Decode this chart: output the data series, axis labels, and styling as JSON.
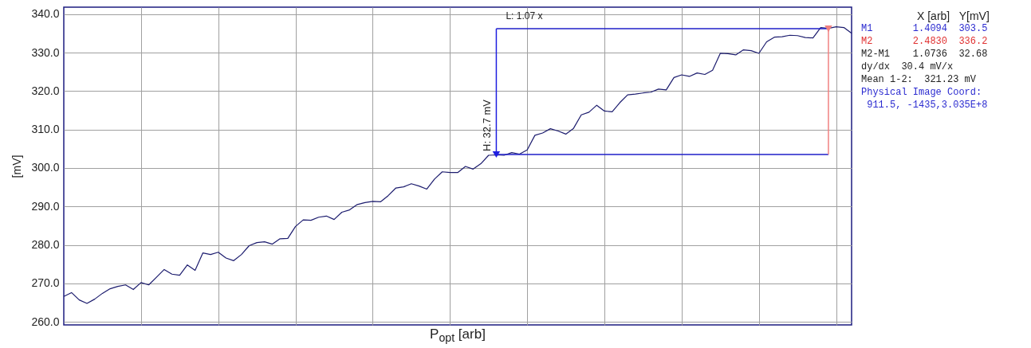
{
  "chart_data": {
    "type": "line",
    "xlabel": "P$_{opt}$ [arb]",
    "ylabel": "[mV]",
    "categories": [
      null,
      null,
      null,
      null,
      null,
      null,
      null,
      null,
      null,
      null,
      null,
      null,
      null,
      null,
      null,
      null,
      null,
      null,
      null,
      null,
      null,
      null,
      null,
      null,
      null,
      null,
      null,
      null,
      null,
      null,
      null,
      null,
      null,
      null,
      null,
      null,
      null,
      null,
      null,
      null,
      null,
      null,
      null,
      null,
      null,
      null,
      null,
      null,
      null,
      null,
      null,
      null,
      null,
      null,
      null,
      null,
      null,
      null,
      null,
      null,
      null,
      null,
      null,
      null,
      null,
      null,
      null,
      null,
      null,
      null,
      null,
      null,
      null,
      null,
      null,
      null,
      null,
      null,
      null,
      null,
      null,
      null,
      null,
      null,
      null,
      null,
      null,
      null,
      null,
      null,
      null,
      null,
      null,
      null,
      null,
      null,
      null,
      null,
      null,
      null,
      null,
      null,
      null
    ],
    "ylim": [
      259.2,
      341.8
    ],
    "yticks": [
      {
        "value": 260,
        "label": "260.0"
      },
      {
        "value": 270,
        "label": "270.0"
      },
      {
        "value": 280,
        "label": "280.0"
      },
      {
        "value": 290,
        "label": "290.0"
      },
      {
        "value": 300,
        "label": "300.0"
      },
      {
        "value": 310,
        "label": "310.0"
      },
      {
        "value": 320,
        "label": "320.0"
      },
      {
        "value": 330,
        "label": "330.0"
      },
      {
        "value": 340,
        "label": "340.0"
      }
    ],
    "grid": true,
    "tick_labels": "y",
    "series": [
      {
        "color": "#1c1c6e",
        "values": [
          266.6,
          267.6,
          265.7,
          264.8,
          265.9,
          267.4,
          268.6,
          269.2,
          269.6,
          268.4,
          270.2,
          269.6,
          271.6,
          273.6,
          272.4,
          272.1,
          274.8,
          273.4,
          277.9,
          277.5,
          278.1,
          276.6,
          275.9,
          277.5,
          279.8,
          280.6,
          280.8,
          280.2,
          281.6,
          281.7,
          284.8,
          286.5,
          286.4,
          287.2,
          287.5,
          286.6,
          288.5,
          289.1,
          290.5,
          291.0,
          291.3,
          291.2,
          292.8,
          294.8,
          295.1,
          295.9,
          295.3,
          294.5,
          297.1,
          299.0,
          298.8,
          298.8,
          300.4,
          299.7,
          301.1,
          303.3,
          303.4,
          303.3,
          304.0,
          303.6,
          304.7,
          308.5,
          309.1,
          310.2,
          309.6,
          308.8,
          310.3,
          313.8,
          314.5,
          316.3,
          314.8,
          314.6,
          317.0,
          319.0,
          319.2,
          319.5,
          319.7,
          320.5,
          320.3,
          323.5,
          324.2,
          323.8,
          324.7,
          324.3,
          325.4,
          329.8,
          329.7,
          329.4,
          330.7,
          330.5,
          329.8,
          332.8,
          334.0,
          334.1,
          334.5,
          334.4,
          333.9,
          333.8,
          336.5,
          336.3,
          336.7,
          336.5,
          335.0
        ]
      },
      {
        "type": "line",
        "color": "#1f1fc8",
        "values": [
          null,
          null,
          null,
          null,
          null,
          null,
          null,
          null,
          null,
          null,
          null,
          null,
          null,
          null,
          null,
          null,
          null,
          null,
          null,
          null,
          null,
          null,
          null,
          null,
          null,
          null,
          null,
          null,
          null,
          null,
          null,
          null,
          null,
          null,
          null,
          null,
          null,
          null,
          null,
          null,
          null,
          null,
          null,
          null,
          null,
          null,
          null,
          null,
          null,
          null,
          null,
          null,
          null,
          null,
          null,
          null,
          336.2,
          336.2,
          336.2,
          336.2,
          336.2,
          336.2,
          336.2,
          336.2,
          336.2,
          336.2,
          336.2,
          336.2,
          336.2,
          336.2,
          336.2,
          336.2,
          336.2,
          336.2,
          336.2,
          336.2,
          336.2,
          336.2,
          336.2,
          336.2,
          336.2,
          336.2,
          336.2,
          336.2,
          336.2,
          336.2,
          336.2,
          336.2,
          336.2,
          336.2,
          336.2,
          336.2,
          336.2,
          336.2,
          336.2,
          336.2,
          336.2,
          336.2,
          336.2,
          336.2,
          null,
          null,
          null
        ]
      },
      {
        "type": "line",
        "color": "#1f1fc8",
        "values": [
          null,
          null,
          null,
          null,
          null,
          null,
          null,
          null,
          null,
          null,
          null,
          null,
          null,
          null,
          null,
          null,
          null,
          null,
          null,
          null,
          null,
          null,
          null,
          null,
          null,
          null,
          null,
          null,
          null,
          null,
          null,
          null,
          null,
          null,
          null,
          null,
          null,
          null,
          null,
          null,
          null,
          null,
          null,
          null,
          null,
          null,
          null,
          null,
          null,
          null,
          null,
          null,
          null,
          null,
          null,
          null,
          303.5,
          303.5,
          303.5,
          303.5,
          303.5,
          303.5,
          303.5,
          303.5,
          303.5,
          303.5,
          303.5,
          303.5,
          303.5,
          303.5,
          303.5,
          303.5,
          303.5,
          303.5,
          303.5,
          303.5,
          303.5,
          303.5,
          303.5,
          303.5,
          303.5,
          303.5,
          303.5,
          303.5,
          303.5,
          303.5,
          303.5,
          303.5,
          303.5,
          303.5,
          303.5,
          303.5,
          303.5,
          303.5,
          303.5,
          303.5,
          303.5,
          303.5,
          303.5,
          303.5,
          null,
          null,
          null
        ]
      },
      {
        "type": "scatter",
        "color": "#1f1fe0",
        "marker": "triangle",
        "values": [
          null,
          null,
          null,
          null,
          null,
          null,
          null,
          null,
          null,
          null,
          null,
          null,
          null,
          null,
          null,
          null,
          null,
          null,
          null,
          null,
          null,
          null,
          null,
          null,
          null,
          null,
          null,
          null,
          null,
          null,
          null,
          null,
          null,
          null,
          null,
          null,
          null,
          null,
          null,
          null,
          null,
          null,
          null,
          null,
          null,
          null,
          null,
          null,
          null,
          null,
          null,
          null,
          null,
          null,
          null,
          null,
          303.5,
          null,
          null,
          null,
          null,
          null,
          null,
          null,
          null,
          null,
          null,
          null,
          null,
          null,
          null,
          null,
          null,
          null,
          null,
          null,
          null,
          null,
          null,
          null,
          null,
          null,
          null,
          null,
          null,
          null,
          null,
          null,
          null,
          null,
          null,
          null,
          null,
          null,
          null,
          null,
          null,
          null,
          null,
          null,
          null,
          null,
          null
        ],
        "errors": [
          null,
          null,
          null,
          null,
          null,
          null,
          null,
          null,
          null,
          null,
          null,
          null,
          null,
          null,
          null,
          null,
          null,
          null,
          null,
          null,
          null,
          null,
          null,
          null,
          null,
          null,
          null,
          null,
          null,
          null,
          null,
          null,
          null,
          null,
          null,
          null,
          null,
          null,
          null,
          null,
          null,
          null,
          null,
          null,
          null,
          null,
          null,
          null,
          null,
          null,
          null,
          null,
          null,
          null,
          null,
          null,
          [
            303.5,
            336.2
          ],
          null,
          null,
          null,
          null,
          null,
          null,
          null,
          null,
          null,
          null,
          null,
          null,
          null,
          null,
          null,
          null,
          null,
          null,
          null,
          null,
          null,
          null,
          null,
          null,
          null,
          null,
          null,
          null,
          null,
          null,
          null,
          null,
          null,
          null,
          null,
          null,
          null,
          null,
          null,
          null,
          null,
          null,
          null,
          null,
          null,
          null
        ]
      },
      {
        "type": "scatter",
        "color": "#f08080",
        "marker": "triangle",
        "values": [
          null,
          null,
          null,
          null,
          null,
          null,
          null,
          null,
          null,
          null,
          null,
          null,
          null,
          null,
          null,
          null,
          null,
          null,
          null,
          null,
          null,
          null,
          null,
          null,
          null,
          null,
          null,
          null,
          null,
          null,
          null,
          null,
          null,
          null,
          null,
          null,
          null,
          null,
          null,
          null,
          null,
          null,
          null,
          null,
          null,
          null,
          null,
          null,
          null,
          null,
          null,
          null,
          null,
          null,
          null,
          null,
          null,
          null,
          null,
          null,
          null,
          null,
          null,
          null,
          null,
          null,
          null,
          null,
          null,
          null,
          null,
          null,
          null,
          null,
          null,
          null,
          null,
          null,
          null,
          null,
          null,
          null,
          null,
          null,
          null,
          null,
          null,
          null,
          null,
          null,
          null,
          null,
          null,
          null,
          null,
          null,
          null,
          null,
          null,
          336.2,
          null,
          null,
          null
        ],
        "errors": [
          null,
          null,
          null,
          null,
          null,
          null,
          null,
          null,
          null,
          null,
          null,
          null,
          null,
          null,
          null,
          null,
          null,
          null,
          null,
          null,
          null,
          null,
          null,
          null,
          null,
          null,
          null,
          null,
          null,
          null,
          null,
          null,
          null,
          null,
          null,
          null,
          null,
          null,
          null,
          null,
          null,
          null,
          null,
          null,
          null,
          null,
          null,
          null,
          null,
          null,
          null,
          null,
          null,
          null,
          null,
          null,
          null,
          null,
          null,
          null,
          null,
          null,
          null,
          null,
          null,
          null,
          null,
          null,
          null,
          null,
          null,
          null,
          null,
          null,
          null,
          null,
          null,
          null,
          null,
          null,
          null,
          null,
          null,
          null,
          null,
          null,
          null,
          null,
          null,
          null,
          null,
          null,
          null,
          null,
          null,
          null,
          null,
          null,
          null,
          [
            303.5,
            336.2
          ],
          null,
          null,
          null
        ]
      }
    ],
    "annotations": [
      "L:  1.07 x",
      "H:  32.7 mV",
      "X [arb]   Y[mV]",
      "M1       1.4094  303.5",
      "M2       2.4830  336.2",
      "M2-M1    1.0736  32.68",
      "dy/dx  30.4 mV/x",
      "Mean 1-2:  321.23 mV",
      "Physical Image Coord:",
      " 911.5, -1435,3.035E+8"
    ]
  }
}
